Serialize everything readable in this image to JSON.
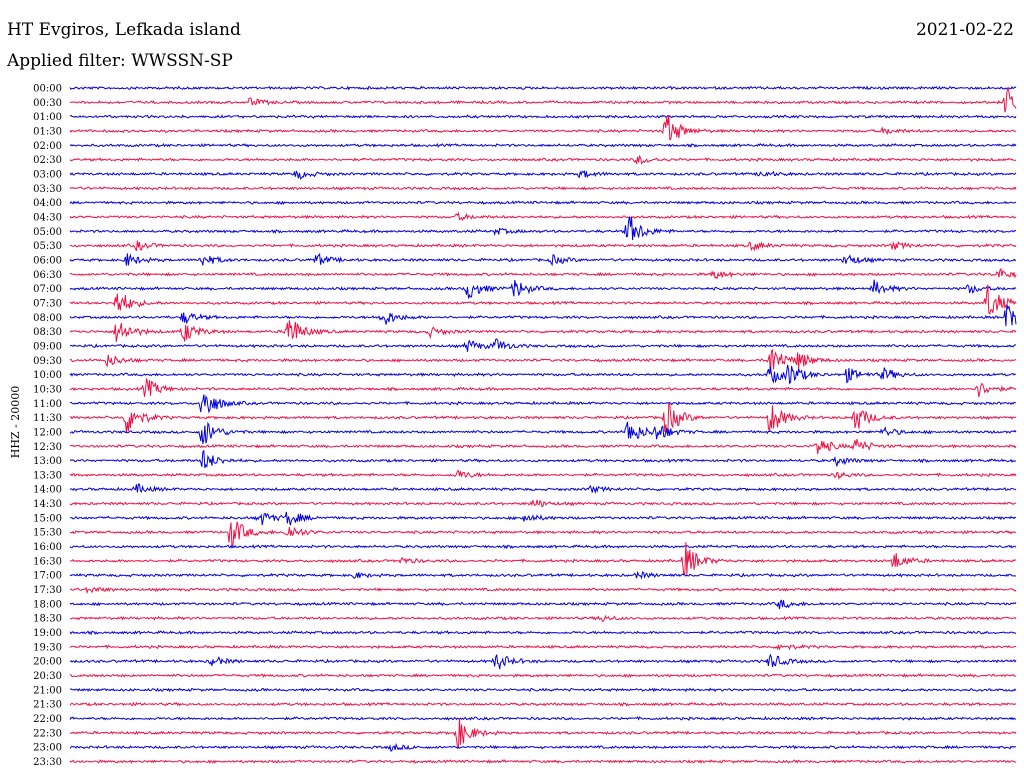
{
  "header": {
    "station": "HT Evgiros, Lefkada island",
    "date": "2021-02-22",
    "filter": "Applied filter: WWSSN-SP"
  },
  "channel_label": "HHZ - 20000",
  "colors": {
    "blue": "#0000dd",
    "red": "#ee1144",
    "text": "#000000",
    "background": "#ffffff"
  },
  "chart_data": {
    "type": "line",
    "title": "HT Evgiros, Lefkada island",
    "subtitle": "Applied filter: WWSSN-SP",
    "xlabel": "",
    "ylabel": "HHZ - 20000",
    "grid": false,
    "traces": [
      {
        "time": "00:00",
        "color": "blue",
        "events": []
      },
      {
        "time": "00:30",
        "color": "red",
        "events": [
          {
            "t": 0.19,
            "amp": 0.25
          },
          {
            "t": 0.99,
            "amp": 1.1
          }
        ]
      },
      {
        "time": "01:00",
        "color": "blue",
        "events": []
      },
      {
        "time": "01:30",
        "color": "red",
        "events": [
          {
            "t": 0.63,
            "amp": 1.2
          },
          {
            "t": 0.86,
            "amp": 0.2
          }
        ]
      },
      {
        "time": "02:00",
        "color": "blue",
        "events": []
      },
      {
        "time": "02:30",
        "color": "red",
        "events": [
          {
            "t": 0.6,
            "amp": 0.3
          }
        ]
      },
      {
        "time": "03:00",
        "color": "blue",
        "events": [
          {
            "t": 0.24,
            "amp": 0.3
          },
          {
            "t": 0.54,
            "amp": 0.25
          },
          {
            "t": 0.73,
            "amp": 0.2
          }
        ]
      },
      {
        "time": "03:30",
        "color": "red",
        "events": []
      },
      {
        "time": "04:00",
        "color": "blue",
        "events": []
      },
      {
        "time": "04:30",
        "color": "red",
        "events": [
          {
            "t": 0.41,
            "amp": 0.2
          }
        ]
      },
      {
        "time": "05:00",
        "color": "blue",
        "events": [
          {
            "t": 0.59,
            "amp": 1.1
          },
          {
            "t": 0.45,
            "amp": 0.2
          }
        ]
      },
      {
        "time": "05:30",
        "color": "red",
        "events": [
          {
            "t": 0.07,
            "amp": 0.3
          },
          {
            "t": 0.72,
            "amp": 0.25
          },
          {
            "t": 0.87,
            "amp": 0.25
          }
        ]
      },
      {
        "time": "06:00",
        "color": "blue",
        "events": [
          {
            "t": 0.06,
            "amp": 0.4
          },
          {
            "t": 0.14,
            "amp": 0.4
          },
          {
            "t": 0.26,
            "amp": 0.4
          },
          {
            "t": 0.51,
            "amp": 0.3
          },
          {
            "t": 0.82,
            "amp": 0.4
          }
        ]
      },
      {
        "time": "06:30",
        "color": "red",
        "events": [
          {
            "t": 0.68,
            "amp": 0.3
          },
          {
            "t": 0.98,
            "amp": 0.4
          }
        ]
      },
      {
        "time": "07:00",
        "color": "blue",
        "events": [
          {
            "t": 0.42,
            "amp": 0.7
          },
          {
            "t": 0.47,
            "amp": 0.6
          },
          {
            "t": 0.85,
            "amp": 0.5
          },
          {
            "t": 0.95,
            "amp": 0.3
          }
        ]
      },
      {
        "time": "07:30",
        "color": "red",
        "events": [
          {
            "t": 0.05,
            "amp": 0.9
          },
          {
            "t": 0.97,
            "amp": 1.2
          }
        ]
      },
      {
        "time": "08:00",
        "color": "blue",
        "events": [
          {
            "t": 0.12,
            "amp": 0.4
          },
          {
            "t": 0.33,
            "amp": 0.6
          },
          {
            "t": 0.99,
            "amp": 0.9
          }
        ]
      },
      {
        "time": "08:30",
        "color": "red",
        "events": [
          {
            "t": 0.05,
            "amp": 0.9
          },
          {
            "t": 0.12,
            "amp": 0.7
          },
          {
            "t": 0.23,
            "amp": 1.2
          },
          {
            "t": 0.38,
            "amp": 0.3
          }
        ]
      },
      {
        "time": "09:00",
        "color": "blue",
        "events": [
          {
            "t": 0.42,
            "amp": 0.4
          },
          {
            "t": 0.45,
            "amp": 0.4
          }
        ]
      },
      {
        "time": "09:30",
        "color": "red",
        "events": [
          {
            "t": 0.04,
            "amp": 0.4
          },
          {
            "t": 0.74,
            "amp": 1.1
          },
          {
            "t": 0.77,
            "amp": 0.5
          }
        ]
      },
      {
        "time": "10:00",
        "color": "blue",
        "events": [
          {
            "t": 0.74,
            "amp": 0.6
          },
          {
            "t": 0.76,
            "amp": 0.7
          },
          {
            "t": 0.82,
            "amp": 0.5
          },
          {
            "t": 0.86,
            "amp": 0.4
          }
        ]
      },
      {
        "time": "10:30",
        "color": "red",
        "events": [
          {
            "t": 0.08,
            "amp": 0.7
          },
          {
            "t": 0.96,
            "amp": 0.5
          }
        ]
      },
      {
        "time": "11:00",
        "color": "blue",
        "events": [
          {
            "t": 0.14,
            "amp": 1.2
          }
        ]
      },
      {
        "time": "11:30",
        "color": "red",
        "events": [
          {
            "t": 0.06,
            "amp": 1.1
          },
          {
            "t": 0.63,
            "amp": 1.2
          },
          {
            "t": 0.74,
            "amp": 1.1
          },
          {
            "t": 0.83,
            "amp": 0.9
          }
        ]
      },
      {
        "time": "12:00",
        "color": "blue",
        "events": [
          {
            "t": 0.14,
            "amp": 1.0
          },
          {
            "t": 0.59,
            "amp": 0.9
          },
          {
            "t": 0.62,
            "amp": 0.6
          },
          {
            "t": 0.86,
            "amp": 0.3
          }
        ]
      },
      {
        "time": "12:30",
        "color": "red",
        "events": [
          {
            "t": 0.79,
            "amp": 0.6
          },
          {
            "t": 0.83,
            "amp": 0.5
          }
        ]
      },
      {
        "time": "13:00",
        "color": "blue",
        "events": [
          {
            "t": 0.14,
            "amp": 0.7
          },
          {
            "t": 0.81,
            "amp": 0.3
          }
        ]
      },
      {
        "time": "13:30",
        "color": "red",
        "events": [
          {
            "t": 0.41,
            "amp": 0.3
          },
          {
            "t": 0.81,
            "amp": 0.2
          }
        ]
      },
      {
        "time": "14:00",
        "color": "blue",
        "events": [
          {
            "t": 0.07,
            "amp": 0.3
          },
          {
            "t": 0.55,
            "amp": 0.2
          }
        ]
      },
      {
        "time": "14:30",
        "color": "red",
        "events": [
          {
            "t": 0.49,
            "amp": 0.3
          }
        ]
      },
      {
        "time": "15:00",
        "color": "blue",
        "events": [
          {
            "t": 0.2,
            "amp": 0.5
          },
          {
            "t": 0.23,
            "amp": 0.5
          },
          {
            "t": 0.48,
            "amp": 0.3
          }
        ]
      },
      {
        "time": "15:30",
        "color": "red",
        "events": [
          {
            "t": 0.17,
            "amp": 1.1
          },
          {
            "t": 0.23,
            "amp": 0.5
          }
        ]
      },
      {
        "time": "16:00",
        "color": "blue",
        "events": []
      },
      {
        "time": "16:30",
        "color": "red",
        "events": [
          {
            "t": 0.35,
            "amp": 0.2
          },
          {
            "t": 0.65,
            "amp": 1.2
          },
          {
            "t": 0.87,
            "amp": 0.6
          }
        ]
      },
      {
        "time": "17:00",
        "color": "blue",
        "events": [
          {
            "t": 0.3,
            "amp": 0.2
          },
          {
            "t": 0.6,
            "amp": 0.2
          }
        ]
      },
      {
        "time": "17:30",
        "color": "red",
        "events": [
          {
            "t": 0.02,
            "amp": 0.2
          }
        ]
      },
      {
        "time": "18:00",
        "color": "blue",
        "events": [
          {
            "t": 0.75,
            "amp": 0.3
          }
        ]
      },
      {
        "time": "18:30",
        "color": "red",
        "events": [
          {
            "t": 0.56,
            "amp": 0.2
          }
        ]
      },
      {
        "time": "19:00",
        "color": "blue",
        "events": []
      },
      {
        "time": "19:30",
        "color": "red",
        "events": [
          {
            "t": 0.75,
            "amp": 0.2
          }
        ]
      },
      {
        "time": "20:00",
        "color": "blue",
        "events": [
          {
            "t": 0.15,
            "amp": 0.3
          },
          {
            "t": 0.45,
            "amp": 0.6
          },
          {
            "t": 0.74,
            "amp": 0.5
          }
        ]
      },
      {
        "time": "20:30",
        "color": "red",
        "events": []
      },
      {
        "time": "21:00",
        "color": "blue",
        "events": []
      },
      {
        "time": "21:30",
        "color": "red",
        "events": []
      },
      {
        "time": "22:00",
        "color": "blue",
        "events": []
      },
      {
        "time": "22:30",
        "color": "red",
        "events": [
          {
            "t": 0.41,
            "amp": 1.0
          }
        ]
      },
      {
        "time": "23:00",
        "color": "blue",
        "events": [
          {
            "t": 0.34,
            "amp": 0.2
          }
        ]
      },
      {
        "time": "23:30",
        "color": "red",
        "events": []
      }
    ]
  }
}
